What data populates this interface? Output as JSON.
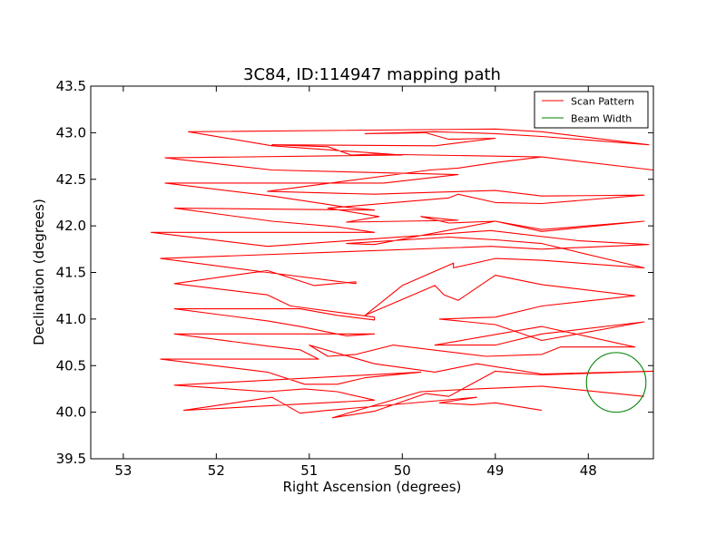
{
  "chart_data": {
    "type": "line",
    "title": "3C84, ID:114947 mapping path",
    "xlabel": "Right Ascension (degrees)",
    "ylabel": "Declination (degrees)",
    "xlim": [
      53.35,
      47.3
    ],
    "ylim": [
      39.5,
      43.5
    ],
    "x_inverted": true,
    "xticks": [
      53,
      52,
      51,
      50,
      49,
      48
    ],
    "xtick_labels": [
      "53",
      "52",
      "51",
      "50",
      "49",
      "48"
    ],
    "yticks": [
      39.5,
      40.0,
      40.5,
      41.0,
      41.5,
      42.0,
      42.5,
      43.0,
      43.5
    ],
    "ytick_labels": [
      "39.5",
      "40.0",
      "40.5",
      "41.0",
      "41.5",
      "42.0",
      "42.5",
      "43.0",
      "43.5"
    ],
    "grid": false,
    "legend_position": "top-right",
    "series": [
      {
        "name": "Scan Pattern",
        "color": "#ff0000",
        "points": [
          [
            48.5,
            40.02
          ],
          [
            49.0,
            40.1
          ],
          [
            49.25,
            40.08
          ],
          [
            49.6,
            40.1
          ],
          [
            49.2,
            40.16
          ],
          [
            50.8,
            40.02
          ],
          [
            51.1,
            39.99
          ],
          [
            51.4,
            40.16
          ],
          [
            52.35,
            40.02
          ],
          [
            50.3,
            40.13
          ],
          [
            50.7,
            40.22
          ],
          [
            51.05,
            40.25
          ],
          [
            51.45,
            40.22
          ],
          [
            52.45,
            40.29
          ],
          [
            49.8,
            40.43
          ],
          [
            50.4,
            40.37
          ],
          [
            50.7,
            40.3
          ],
          [
            51.05,
            40.3
          ],
          [
            51.45,
            40.43
          ],
          [
            52.6,
            40.57
          ],
          [
            50.9,
            40.57
          ],
          [
            51.1,
            40.67
          ],
          [
            51.45,
            40.71
          ],
          [
            52.45,
            40.84
          ],
          [
            50.3,
            40.84
          ],
          [
            50.6,
            40.82
          ],
          [
            50.8,
            40.86
          ],
          [
            51.1,
            40.92
          ],
          [
            51.45,
            40.98
          ],
          [
            52.45,
            41.11
          ],
          [
            51.1,
            41.11
          ],
          [
            50.7,
            41.04
          ],
          [
            50.3,
            40.99
          ],
          [
            50.3,
            41.02
          ],
          [
            51.2,
            41.14
          ],
          [
            51.45,
            41.26
          ],
          [
            52.45,
            41.38
          ],
          [
            51.45,
            41.52
          ],
          [
            50.95,
            41.36
          ],
          [
            50.5,
            41.4
          ],
          [
            50.5,
            41.38
          ],
          [
            51.45,
            41.5
          ],
          [
            52.6,
            41.65
          ],
          [
            49.05,
            41.78
          ],
          [
            48.5,
            41.75
          ],
          [
            47.35,
            41.8
          ],
          [
            48.1,
            41.84
          ],
          [
            49.05,
            41.95
          ],
          [
            51.45,
            41.78
          ],
          [
            52.7,
            41.93
          ],
          [
            50.3,
            41.93
          ],
          [
            50.7,
            41.99
          ],
          [
            51.4,
            42.05
          ],
          [
            52.45,
            42.19
          ],
          [
            50.3,
            42.17
          ],
          [
            50.6,
            42.2
          ],
          [
            51.4,
            42.32
          ],
          [
            52.55,
            42.46
          ],
          [
            50.2,
            42.46
          ],
          [
            49.4,
            42.55
          ],
          [
            51.4,
            42.6
          ],
          [
            52.55,
            42.73
          ],
          [
            50.0,
            42.76
          ],
          [
            51.4,
            42.86
          ],
          [
            52.3,
            43.01
          ],
          [
            49.0,
            43.04
          ],
          [
            48.5,
            43.01
          ],
          [
            47.35,
            42.87
          ],
          [
            48.5,
            42.96
          ],
          [
            49.0,
            42.99
          ],
          [
            49.65,
            43.01
          ],
          [
            50.4,
            42.99
          ],
          [
            49.75,
            43.0
          ],
          [
            49.5,
            42.93
          ],
          [
            49.0,
            42.94
          ],
          [
            49.65,
            42.86
          ],
          [
            51.4,
            42.87
          ],
          [
            50.8,
            42.85
          ],
          [
            50.55,
            42.76
          ],
          [
            50.3,
            42.77
          ],
          [
            48.5,
            42.74
          ],
          [
            47.3,
            42.6
          ],
          [
            48.5,
            42.74
          ],
          [
            49.0,
            42.68
          ],
          [
            49.4,
            42.62
          ],
          [
            49.7,
            42.6
          ],
          [
            51.45,
            42.37
          ],
          [
            50.3,
            42.34
          ],
          [
            49.65,
            42.36
          ],
          [
            49.0,
            42.38
          ],
          [
            48.5,
            42.32
          ],
          [
            47.4,
            42.33
          ],
          [
            48.5,
            42.24
          ],
          [
            49.0,
            42.25
          ],
          [
            49.4,
            42.34
          ],
          [
            49.5,
            42.3
          ],
          [
            50.8,
            42.19
          ],
          [
            50.25,
            42.1
          ],
          [
            50.6,
            42.04
          ],
          [
            49.4,
            42.06
          ],
          [
            49.8,
            42.1
          ],
          [
            49.5,
            42.03
          ],
          [
            49.0,
            42.05
          ],
          [
            48.5,
            41.94
          ],
          [
            47.4,
            42.05
          ],
          [
            48.5,
            41.96
          ],
          [
            49.0,
            42.05
          ],
          [
            50.3,
            41.8
          ],
          [
            50.6,
            41.81
          ],
          [
            49.5,
            41.88
          ],
          [
            49.0,
            41.85
          ],
          [
            48.5,
            41.81
          ],
          [
            47.4,
            41.55
          ],
          [
            48.5,
            41.63
          ],
          [
            49.0,
            41.65
          ],
          [
            49.45,
            41.55
          ],
          [
            49.45,
            41.6
          ],
          [
            50.0,
            41.36
          ],
          [
            50.4,
            41.04
          ],
          [
            49.65,
            41.36
          ],
          [
            49.55,
            41.26
          ],
          [
            49.4,
            41.2
          ],
          [
            49.0,
            41.47
          ],
          [
            48.5,
            41.37
          ],
          [
            47.5,
            41.25
          ],
          [
            48.5,
            41.14
          ],
          [
            49.0,
            41.02
          ],
          [
            49.6,
            41.0
          ],
          [
            49.0,
            40.94
          ],
          [
            48.5,
            40.77
          ],
          [
            47.4,
            40.97
          ],
          [
            48.5,
            40.84
          ],
          [
            49.0,
            40.72
          ],
          [
            49.65,
            40.72
          ],
          [
            48.5,
            40.92
          ],
          [
            47.5,
            40.7
          ],
          [
            48.3,
            40.7
          ],
          [
            48.5,
            40.62
          ],
          [
            49.1,
            40.6
          ],
          [
            50.1,
            40.72
          ],
          [
            50.5,
            40.62
          ],
          [
            50.8,
            40.6
          ],
          [
            51.0,
            40.72
          ],
          [
            50.3,
            40.52
          ],
          [
            49.65,
            40.43
          ],
          [
            49.2,
            40.52
          ],
          [
            48.5,
            40.41
          ],
          [
            47.3,
            40.44
          ],
          [
            48.5,
            40.4
          ],
          [
            49.0,
            40.44
          ],
          [
            49.5,
            40.17
          ],
          [
            49.75,
            40.2
          ],
          [
            50.3,
            40.01
          ],
          [
            50.75,
            39.94
          ],
          [
            49.8,
            40.22
          ],
          [
            49.2,
            40.25
          ],
          [
            48.5,
            40.28
          ],
          [
            47.4,
            40.17
          ]
        ]
      }
    ],
    "beam": {
      "name": "Beam Width",
      "color": "#008000",
      "center": [
        47.7,
        40.32
      ],
      "radius_deg": 0.32
    }
  }
}
